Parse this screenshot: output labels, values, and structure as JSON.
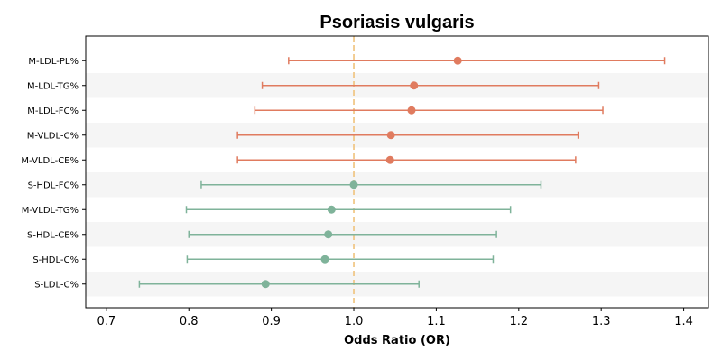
{
  "chart_data": {
    "type": "forest",
    "title": "Psoriasis vulgaris",
    "xlabel": "Odds Ratio (OR)",
    "ylabel": "",
    "xlim": [
      0.675,
      1.43
    ],
    "xticks": [
      0.7,
      0.8,
      0.9,
      1.0,
      1.1,
      1.2,
      1.3,
      1.4
    ],
    "xtick_labels": [
      "0.7",
      "0.8",
      "0.9",
      "1.0",
      "1.1",
      "1.2",
      "1.3",
      "1.4"
    ],
    "reference_line": 1.0,
    "grid": false,
    "row_banding": true,
    "colors": {
      "risk": "#e07b5f",
      "protective": "#7fb39a",
      "reference": "#f0c27b",
      "band": "#f5f5f5"
    },
    "categories": [
      "M-LDL-PL%",
      "M-LDL-TG%",
      "M-LDL-FC%",
      "M-VLDL-C%",
      "M-VLDL-CE%",
      "S-HDL-FC%",
      "M-VLDL-TG%",
      "S-HDL-CE%",
      "S-HDL-C%",
      "S-LDL-C%"
    ],
    "or": [
      1.126,
      1.073,
      1.07,
      1.045,
      1.044,
      1.0,
      0.973,
      0.969,
      0.965,
      0.893
    ],
    "lower": [
      0.921,
      0.889,
      0.88,
      0.859,
      0.859,
      0.815,
      0.797,
      0.8,
      0.798,
      0.74
    ],
    "upper": [
      1.377,
      1.297,
      1.302,
      1.272,
      1.269,
      1.227,
      1.19,
      1.173,
      1.169,
      1.079
    ],
    "group": [
      "risk",
      "risk",
      "risk",
      "risk",
      "risk",
      "protective",
      "protective",
      "protective",
      "protective",
      "protective"
    ]
  }
}
